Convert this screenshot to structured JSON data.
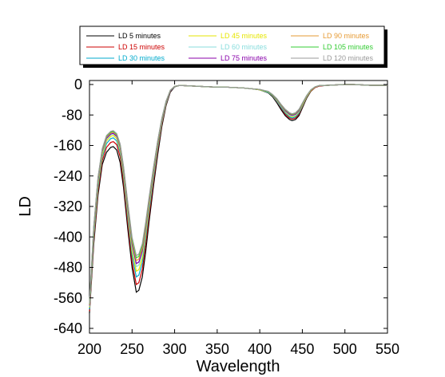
{
  "chart_data": {
    "type": "line",
    "title": "",
    "xlabel": "Wavelength",
    "ylabel": "LD",
    "xlim": [
      200,
      550
    ],
    "ylim": [
      -640,
      0
    ],
    "xticks": [
      "200",
      "250",
      "300",
      "350",
      "400",
      "450",
      "500",
      "550"
    ],
    "yticks": [
      "0",
      "-80",
      "-160",
      "-240",
      "-320",
      "-400",
      "-480",
      "-560",
      "-640"
    ],
    "grid": false,
    "legend_position": "top",
    "x": [
      200,
      205,
      210,
      215,
      220,
      225,
      228,
      232,
      236,
      240,
      245,
      250,
      255,
      258,
      262,
      266,
      270,
      275,
      280,
      285,
      290,
      295,
      300,
      305,
      310,
      320,
      330,
      340,
      350,
      360,
      370,
      380,
      390,
      400,
      410,
      415,
      420,
      425,
      430,
      435,
      438,
      442,
      446,
      450,
      455,
      460,
      465,
      470,
      480,
      490,
      500,
      510,
      520,
      530,
      540,
      550
    ],
    "series": [
      {
        "name": "LD 5 minutes",
        "color": "#000000",
        "values": [
          -600,
          -420,
          -290,
          -210,
          -178,
          -165,
          -163,
          -172,
          -205,
          -270,
          -380,
          -480,
          -545,
          -540,
          -505,
          -440,
          -360,
          -270,
          -185,
          -110,
          -55,
          -20,
          -6,
          -3,
          -3,
          -4,
          -5,
          -6,
          -7,
          -7,
          -8,
          -9,
          -11,
          -14,
          -22,
          -32,
          -48,
          -66,
          -82,
          -92,
          -95,
          -92,
          -82,
          -62,
          -36,
          -18,
          -8,
          -4,
          -2,
          -1,
          0,
          0,
          -1,
          -2,
          -2,
          -2
        ]
      },
      {
        "name": "LD 15 minutes",
        "color": "#cc0000",
        "values": [
          -595,
          -410,
          -280,
          -200,
          -165,
          -152,
          -150,
          -158,
          -190,
          -255,
          -365,
          -465,
          -525,
          -520,
          -485,
          -420,
          -345,
          -258,
          -175,
          -104,
          -52,
          -18,
          -5,
          -3,
          -3,
          -4,
          -5,
          -6,
          -7,
          -7,
          -8,
          -9,
          -11,
          -14,
          -21,
          -30,
          -45,
          -62,
          -78,
          -88,
          -91,
          -88,
          -78,
          -59,
          -34,
          -17,
          -8,
          -4,
          -2,
          -1,
          0,
          0,
          -1,
          -2,
          -2,
          -2
        ]
      },
      {
        "name": "LD 30 minutes",
        "color": "#00aacc",
        "values": [
          -590,
          -400,
          -270,
          -190,
          -155,
          -142,
          -140,
          -148,
          -178,
          -242,
          -350,
          -448,
          -505,
          -500,
          -468,
          -405,
          -332,
          -248,
          -168,
          -100,
          -50,
          -17,
          -5,
          -3,
          -3,
          -4,
          -5,
          -6,
          -7,
          -7,
          -8,
          -9,
          -11,
          -14,
          -21,
          -30,
          -44,
          -60,
          -75,
          -85,
          -88,
          -85,
          -75,
          -57,
          -33,
          -16,
          -7,
          -3,
          -2,
          -1,
          0,
          0,
          -1,
          -2,
          -2,
          -2
        ]
      },
      {
        "name": "LD 45 minutes",
        "color": "#e6e600",
        "values": [
          -585,
          -392,
          -262,
          -184,
          -148,
          -136,
          -134,
          -142,
          -172,
          -235,
          -340,
          -436,
          -490,
          -486,
          -455,
          -394,
          -322,
          -240,
          -162,
          -97,
          -48,
          -16,
          -5,
          -3,
          -3,
          -4,
          -5,
          -6,
          -7,
          -7,
          -8,
          -9,
          -11,
          -14,
          -20,
          -29,
          -42,
          -57,
          -72,
          -82,
          -85,
          -82,
          -72,
          -55,
          -32,
          -16,
          -7,
          -3,
          -2,
          -1,
          0,
          0,
          -1,
          -2,
          -2,
          -2
        ]
      },
      {
        "name": "LD 60 minutes",
        "color": "#88dddd",
        "values": [
          -582,
          -386,
          -256,
          -178,
          -144,
          -132,
          -130,
          -138,
          -167,
          -229,
          -332,
          -426,
          -478,
          -474,
          -444,
          -385,
          -315,
          -235,
          -158,
          -95,
          -47,
          -16,
          -5,
          -3,
          -3,
          -4,
          -5,
          -6,
          -7,
          -7,
          -8,
          -9,
          -11,
          -13,
          -20,
          -28,
          -41,
          -56,
          -70,
          -80,
          -83,
          -80,
          -70,
          -53,
          -31,
          -15,
          -7,
          -3,
          -2,
          -1,
          0,
          0,
          -1,
          -2,
          -2,
          -2
        ]
      },
      {
        "name": "LD 75 minutes",
        "color": "#8800aa",
        "values": [
          -580,
          -382,
          -252,
          -175,
          -141,
          -130,
          -128,
          -136,
          -164,
          -225,
          -326,
          -419,
          -470,
          -466,
          -437,
          -379,
          -310,
          -231,
          -156,
          -93,
          -46,
          -16,
          -5,
          -3,
          -3,
          -4,
          -5,
          -6,
          -7,
          -7,
          -8,
          -9,
          -11,
          -13,
          -19,
          -28,
          -40,
          -55,
          -69,
          -78,
          -81,
          -78,
          -69,
          -52,
          -30,
          -15,
          -7,
          -3,
          -2,
          -1,
          0,
          0,
          -1,
          -2,
          -2,
          -2
        ]
      },
      {
        "name": "LD 90 minutes",
        "color": "#e69a33",
        "values": [
          -578,
          -378,
          -248,
          -172,
          -138,
          -127,
          -125,
          -133,
          -161,
          -221,
          -320,
          -412,
          -462,
          -458,
          -430,
          -373,
          -305,
          -227,
          -153,
          -91,
          -45,
          -15,
          -5,
          -3,
          -3,
          -4,
          -5,
          -6,
          -7,
          -7,
          -8,
          -9,
          -11,
          -13,
          -19,
          -27,
          -39,
          -54,
          -67,
          -76,
          -79,
          -76,
          -67,
          -51,
          -30,
          -15,
          -7,
          -3,
          -2,
          -1,
          0,
          0,
          -1,
          -2,
          -2,
          -2
        ]
      },
      {
        "name": "LD 105 minutes",
        "color": "#33cc33",
        "values": [
          -576,
          -375,
          -245,
          -170,
          -136,
          -125,
          -123,
          -131,
          -158,
          -217,
          -315,
          -406,
          -455,
          -451,
          -423,
          -367,
          -300,
          -223,
          -150,
          -89,
          -44,
          -15,
          -5,
          -3,
          -3,
          -4,
          -5,
          -6,
          -7,
          -7,
          -8,
          -9,
          -11,
          -13,
          -19,
          -27,
          -38,
          -53,
          -66,
          -75,
          -78,
          -75,
          -66,
          -50,
          -29,
          -14,
          -6,
          -3,
          -2,
          -1,
          0,
          0,
          -1,
          -2,
          -2,
          -2
        ]
      },
      {
        "name": "LD 120 minutes",
        "color": "#999999",
        "values": [
          -575,
          -373,
          -243,
          -168,
          -134,
          -123,
          -121,
          -129,
          -156,
          -214,
          -311,
          -401,
          -449,
          -445,
          -418,
          -362,
          -296,
          -220,
          -148,
          -88,
          -43,
          -15,
          -5,
          -3,
          -3,
          -4,
          -5,
          -6,
          -7,
          -7,
          -8,
          -9,
          -11,
          -13,
          -18,
          -26,
          -37,
          -52,
          -65,
          -74,
          -77,
          -74,
          -65,
          -49,
          -29,
          -14,
          -6,
          -3,
          -2,
          -1,
          0,
          0,
          -1,
          -2,
          -2,
          -2
        ]
      }
    ]
  }
}
